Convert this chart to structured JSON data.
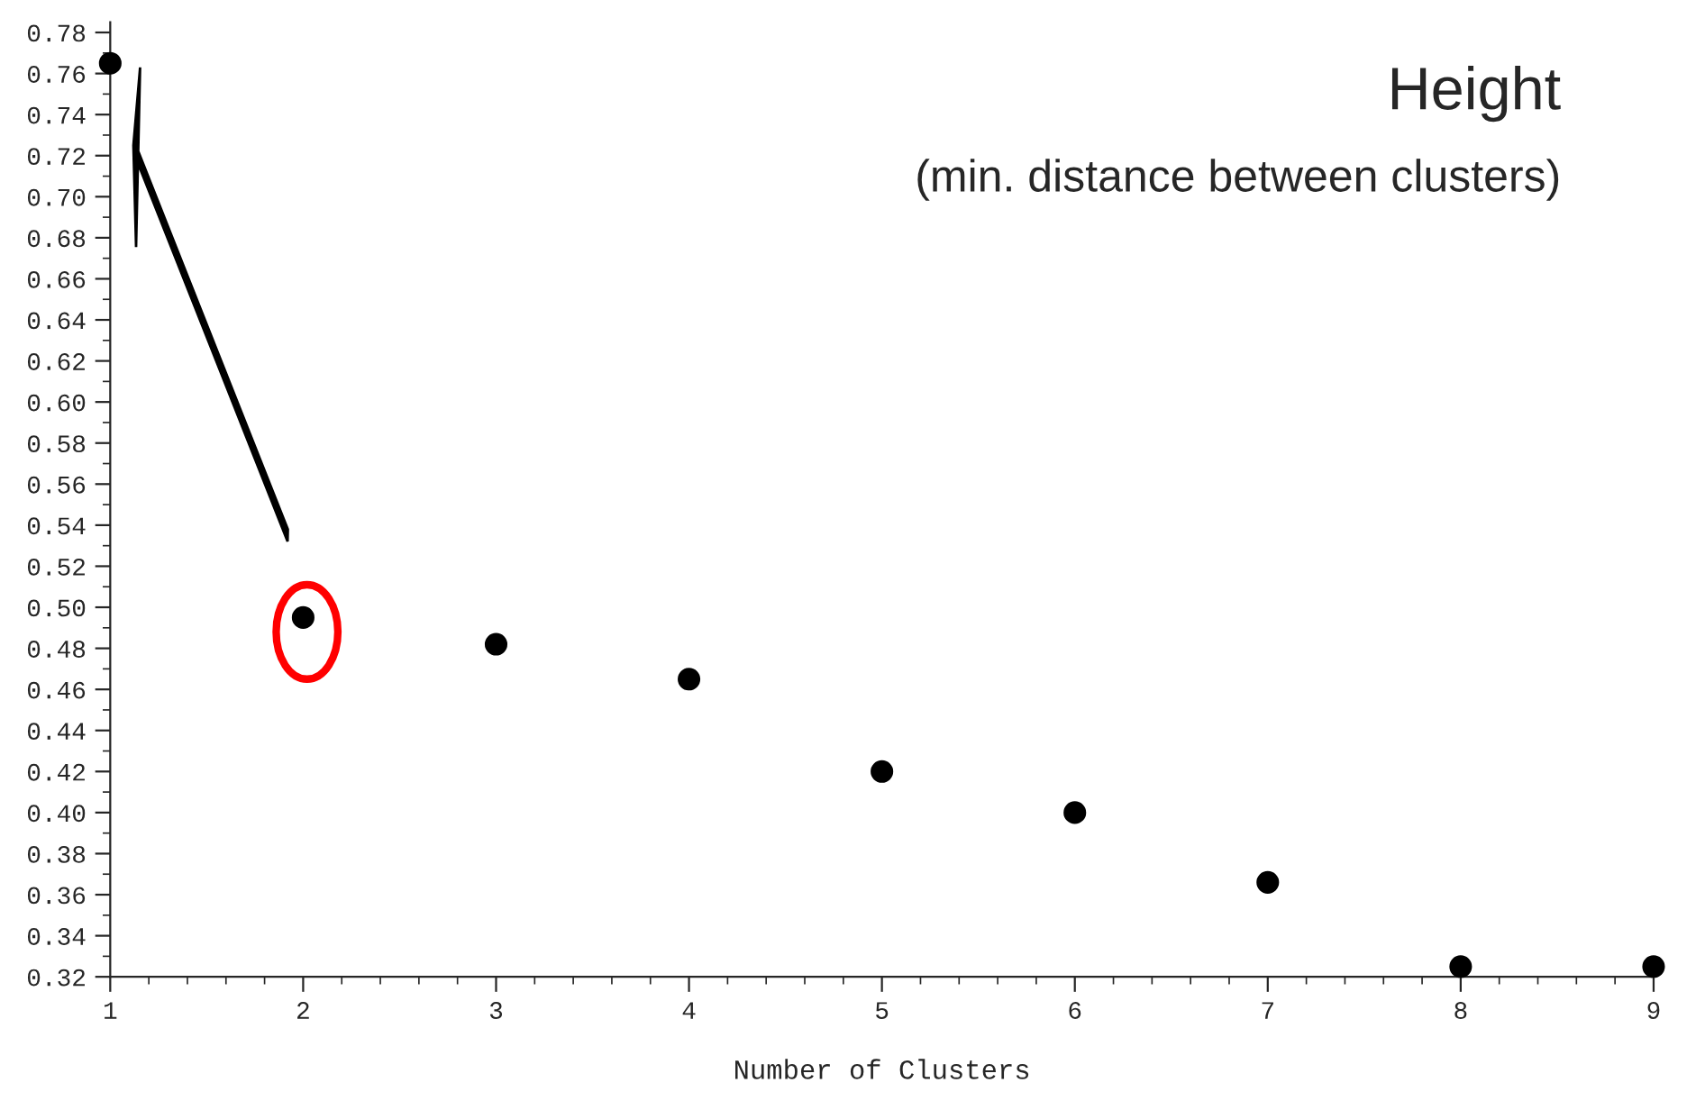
{
  "chart_data": {
    "type": "scatter",
    "xlabel": "Number of Clusters",
    "x": [
      1,
      2,
      3,
      4,
      5,
      6,
      7,
      8,
      9
    ],
    "values": [
      0.765,
      0.495,
      0.482,
      0.465,
      0.42,
      0.4,
      0.366,
      0.325,
      0.325
    ],
    "color": "#000000",
    "marker": "circle",
    "grid": false,
    "xlim": [
      1,
      9
    ],
    "xticks": [
      1,
      2,
      3,
      4,
      5,
      6,
      7,
      8,
      9
    ],
    "ylim": [
      0.32,
      0.785
    ],
    "yticks": [
      0.32,
      0.34,
      0.36,
      0.38,
      {
        "value": 0.4,
        "label": "0.40"
      },
      0.42,
      0.44,
      0.46,
      0.48,
      {
        "value": 0.5,
        "label": "0.50"
      },
      0.52,
      0.54,
      0.56,
      0.58,
      {
        "value": 0.6,
        "label": "0.60"
      },
      0.62,
      0.64,
      0.66,
      0.68,
      {
        "value": 0.7,
        "label": "0.70"
      },
      0.72,
      0.74,
      0.76,
      0.78
    ],
    "annotations": [
      "Height",
      "(min. distance between clusters)"
    ]
  }
}
